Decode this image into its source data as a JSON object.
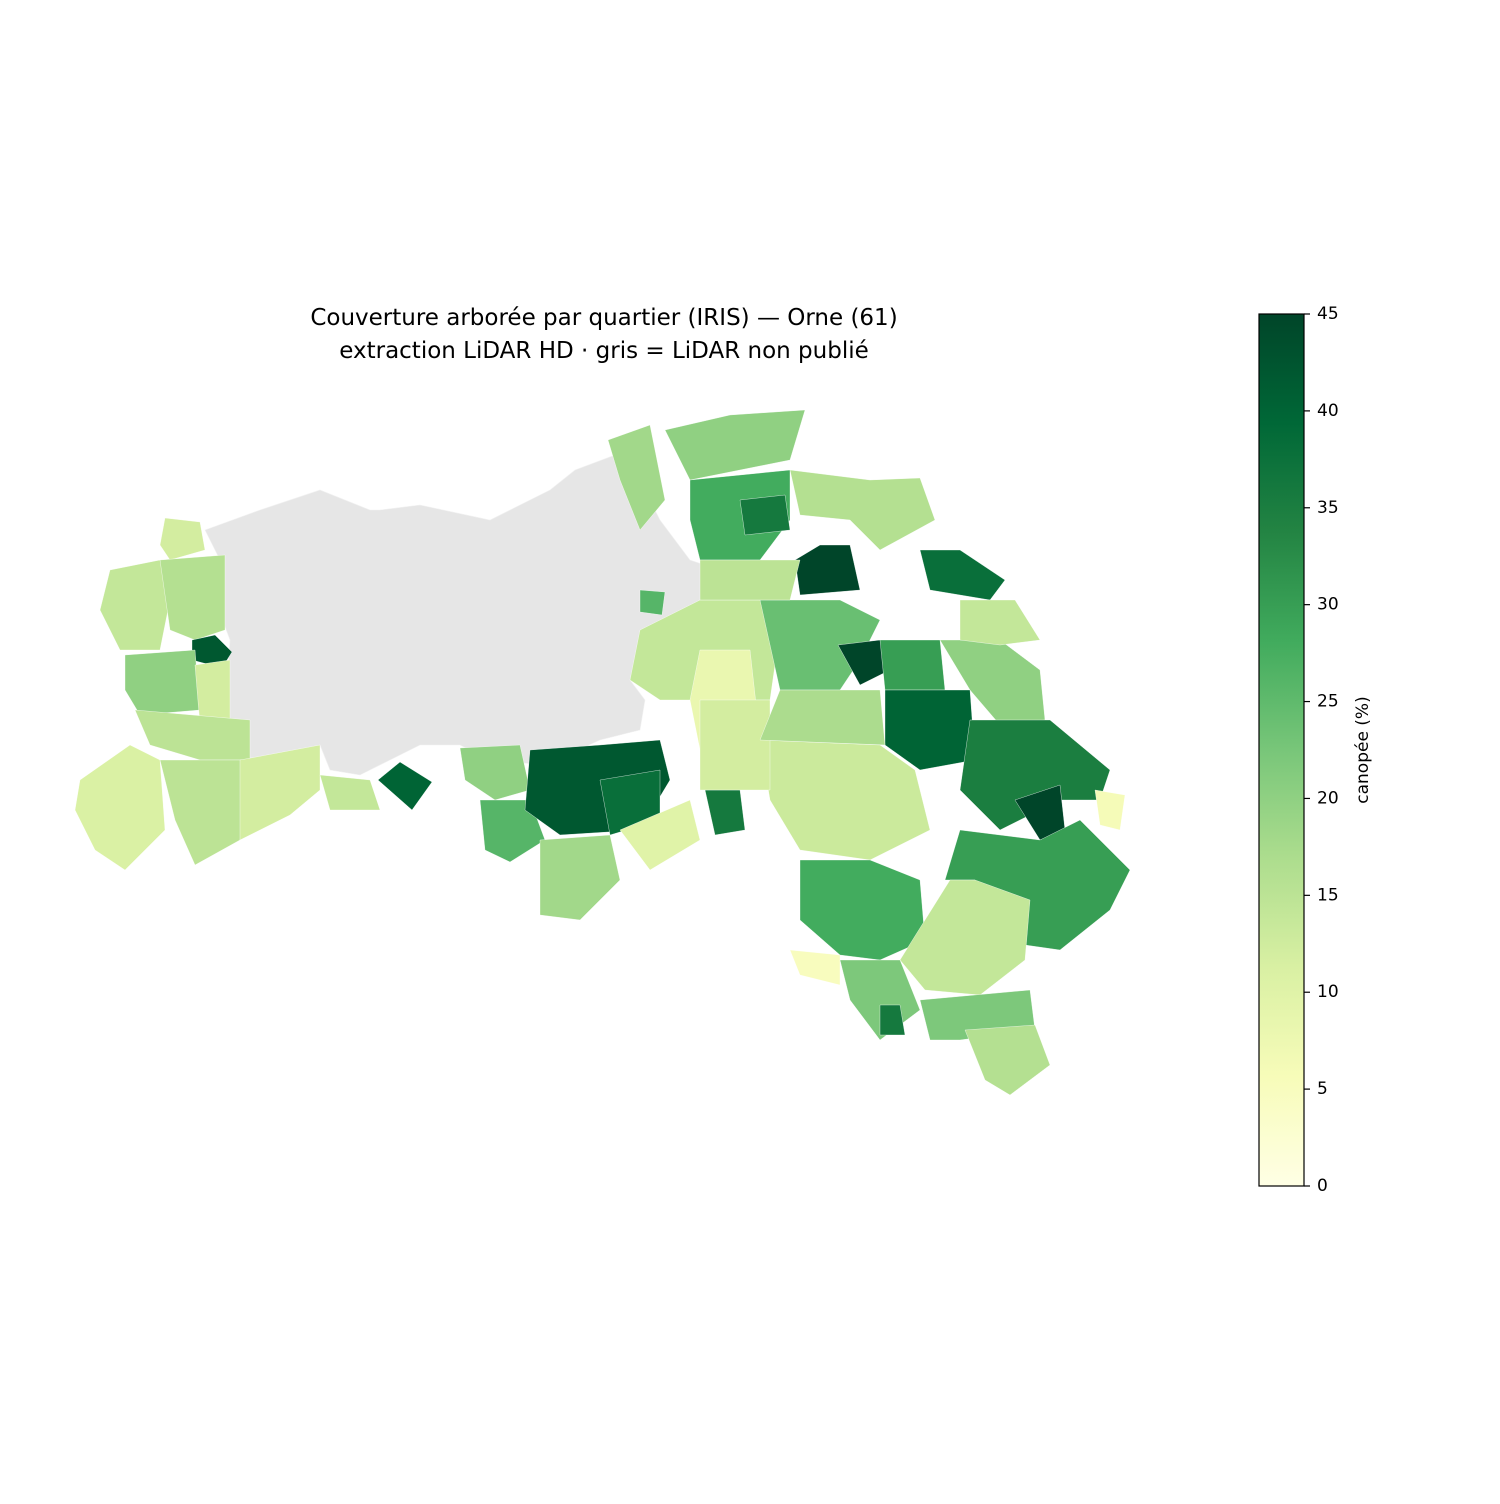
{
  "chart_data": {
    "type": "choropleth",
    "title": "Couverture arborée par quartier (IRIS) — Orne (61)",
    "subtitle": "extraction LiDAR HD · gris = LiDAR non publié",
    "colorbar": {
      "label": "canopée (%)",
      "lim": [
        0,
        45
      ],
      "ticks": [
        0,
        5,
        10,
        15,
        20,
        25,
        30,
        35,
        40,
        45
      ]
    },
    "regions": {
      "values": [
        12,
        14,
        16,
        42,
        20,
        12,
        15,
        11,
        15,
        12,
        14,
        40,
        20,
        26,
        42,
        38,
        18,
        10,
        36,
        18,
        20,
        28,
        36,
        16,
        45,
        38,
        26,
        14,
        8,
        24,
        45,
        30,
        40,
        20,
        35,
        45,
        30,
        6,
        13,
        12,
        28,
        5,
        22,
        14,
        22,
        16,
        36,
        17,
        15,
        14
      ]
    }
  }
}
